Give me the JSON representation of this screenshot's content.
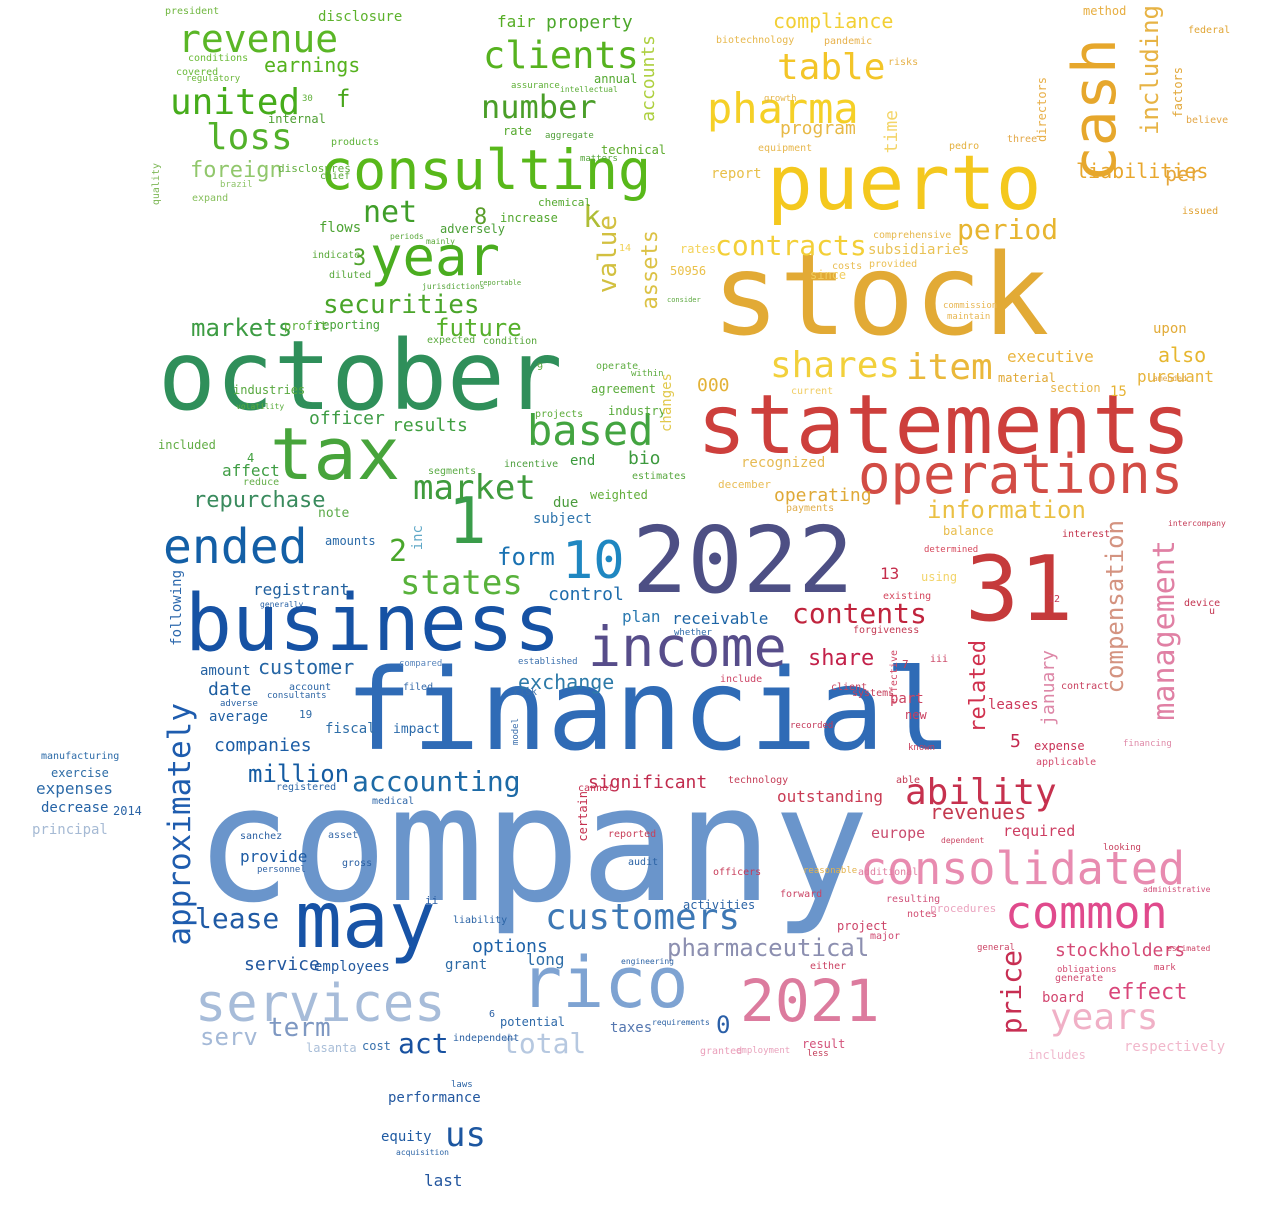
{
  "words": [
    {
      "text": "company",
      "color": "#6a95cb"
    },
    {
      "text": "financial",
      "color": "#2f6bb6"
    },
    {
      "text": "stock",
      "color": "#e2aa35"
    },
    {
      "text": "statements",
      "color": "#cd3f3c"
    },
    {
      "text": "october",
      "color": "#2f8f5a"
    },
    {
      "text": "2022",
      "color": "#4d4f84"
    },
    {
      "text": "31",
      "color": "#c53a3b"
    },
    {
      "text": "puerto",
      "color": "#f4c81e"
    },
    {
      "text": "business",
      "color": "#1652a4"
    },
    {
      "text": "income",
      "color": "#574d8a"
    },
    {
      "text": "may",
      "color": "#1753a6"
    },
    {
      "text": "rico",
      "color": "#7ea3d2"
    },
    {
      "text": "services",
      "color": "#a7bcd9"
    },
    {
      "text": "consulting",
      "color": "#58b81a"
    },
    {
      "text": "tax",
      "color": "#47a43b"
    },
    {
      "text": "operations",
      "color": "#d24c45"
    },
    {
      "text": "common",
      "color": "#e04a8c"
    },
    {
      "text": "consolidated",
      "color": "#e88bb0"
    },
    {
      "text": "2021",
      "color": "#dc7b9e"
    },
    {
      "text": "year",
      "color": "#4aad1f"
    },
    {
      "text": "cash",
      "color": "#e6a72c"
    },
    {
      "text": "ended",
      "color": "#135fa6"
    },
    {
      "text": "1",
      "color": "#3a9c4a"
    },
    {
      "text": "10",
      "color": "#1f87c1"
    },
    {
      "text": "customers",
      "color": "#3d78b5"
    },
    {
      "text": "pharma",
      "color": "#f5d027"
    },
    {
      "text": "revenue",
      "color": "#5ab626"
    },
    {
      "text": "united",
      "color": "#46ac1b"
    },
    {
      "text": "loss",
      "color": "#52b12a"
    },
    {
      "text": "clients",
      "color": "#56b21f"
    },
    {
      "text": "number",
      "color": "#4a9e28"
    },
    {
      "text": "table",
      "color": "#f3c528"
    },
    {
      "text": "based",
      "color": "#43a440"
    },
    {
      "text": "item",
      "color": "#eab83a"
    },
    {
      "text": "shares",
      "color": "#f2d03b"
    },
    {
      "text": "approximately",
      "color": "#1e5cae"
    },
    {
      "text": "ability",
      "color": "#c6314e"
    },
    {
      "text": "management",
      "color": "#e080a4"
    },
    {
      "text": "compensation",
      "color": "#d49380"
    },
    {
      "text": "years",
      "color": "#f0b0c6"
    },
    {
      "text": "price",
      "color": "#c72e52"
    },
    {
      "text": "including",
      "color": "#e7b344"
    },
    {
      "text": "market",
      "color": "#3f9b3c"
    },
    {
      "text": "states",
      "color": "#58b23b"
    },
    {
      "text": "information",
      "color": "#eac044"
    },
    {
      "text": "accounting",
      "color": "#1d6aa6"
    },
    {
      "text": "contents",
      "color": "#c0243d"
    },
    {
      "text": "net",
      "color": "#3f9e29"
    },
    {
      "text": "period",
      "color": "#e7b530"
    },
    {
      "text": "contracts",
      "color": "#f3cf38"
    },
    {
      "text": "securities",
      "color": "#4aa52a"
    },
    {
      "text": "earnings",
      "color": "#55b21e"
    },
    {
      "text": "foreign",
      "color": "#91c76c"
    },
    {
      "text": "markets",
      "color": "#3d9c43"
    },
    {
      "text": "future",
      "color": "#57b02c"
    },
    {
      "text": "assets",
      "color": "#dcc245"
    },
    {
      "text": "value",
      "color": "#d2c040"
    },
    {
      "text": "accounts",
      "color": "#aed040"
    },
    {
      "text": "compliance",
      "color": "#f2cf35"
    },
    {
      "text": "pharmaceutical",
      "color": "#8c8fb0"
    },
    {
      "text": "million",
      "color": "#145ba2"
    },
    {
      "text": "lease",
      "color": "#1f5aa5"
    },
    {
      "text": "exchange",
      "color": "#2d7aa8"
    },
    {
      "text": "revenues",
      "color": "#c43a50"
    },
    {
      "text": "effect",
      "color": "#d9467a"
    },
    {
      "text": "stockholders",
      "color": "#d54a76"
    },
    {
      "text": "related",
      "color": "#d0314e"
    },
    {
      "text": "january",
      "color": "#dd87a7"
    },
    {
      "text": "form",
      "color": "#1a72b2"
    },
    {
      "text": "repurchase",
      "color": "#3a8b5e"
    },
    {
      "text": "customer",
      "color": "#2565a4"
    },
    {
      "text": "term",
      "color": "#7e98c2"
    },
    {
      "text": "total",
      "color": "#b6c8e0"
    },
    {
      "text": "act",
      "color": "#1851a0"
    },
    {
      "text": "us",
      "color": "#1c56a0"
    },
    {
      "text": "serv",
      "color": "#a4b9d7"
    },
    {
      "text": "share",
      "color": "#c3214a"
    },
    {
      "text": "control",
      "color": "#1f6dac"
    },
    {
      "text": "significant",
      "color": "#c12c4e"
    },
    {
      "text": "outstanding",
      "color": "#c93b54"
    },
    {
      "text": "operating",
      "color": "#dfa937"
    },
    {
      "text": "also",
      "color": "#e6b62e"
    },
    {
      "text": "program",
      "color": "#e7b947"
    },
    {
      "text": "executive",
      "color": "#eab540"
    },
    {
      "text": "liabilities",
      "color": "#e8a72d"
    },
    {
      "text": "per",
      "color": "#e6a73c"
    },
    {
      "text": "time",
      "color": "#f4d569"
    },
    {
      "text": "k",
      "color": "#aebd35"
    },
    {
      "text": "f",
      "color": "#49a61c"
    },
    {
      "text": "8",
      "color": "#5a9e2a"
    },
    {
      "text": "3",
      "color": "#50a42c"
    },
    {
      "text": "2",
      "color": "#49a62a"
    },
    {
      "text": "0",
      "color": "#2a5fa8"
    },
    {
      "text": "5",
      "color": "#c4284f"
    },
    {
      "text": "13",
      "color": "#c52d4b"
    },
    {
      "text": "000",
      "color": "#e3b238"
    },
    {
      "text": "results",
      "color": "#3f9f40"
    },
    {
      "text": "officer",
      "color": "#3e9c45"
    },
    {
      "text": "bio",
      "color": "#3d9a3e"
    },
    {
      "text": "receivable",
      "color": "#1f66a6"
    },
    {
      "text": "plan",
      "color": "#2b79b0"
    },
    {
      "text": "options",
      "color": "#1d61a8"
    },
    {
      "text": "companies",
      "color": "#1c5da5"
    },
    {
      "text": "registrant",
      "color": "#22619f"
    },
    {
      "text": "date",
      "color": "#1d5ea1"
    },
    {
      "text": "expenses",
      "color": "#2c6aa8"
    },
    {
      "text": "principal",
      "color": "#a6bad4"
    },
    {
      "text": "europe",
      "color": "#c94c6e"
    },
    {
      "text": "required",
      "color": "#cd3e62"
    },
    {
      "text": "upon",
      "color": "#e2ab37"
    },
    {
      "text": "pursuant",
      "color": "#e7b43a"
    },
    {
      "text": "leases",
      "color": "#cd3a5c"
    },
    {
      "text": "expense",
      "color": "#c93458"
    },
    {
      "text": "material",
      "color": "#e0a834"
    },
    {
      "text": "subject",
      "color": "#2f75ad"
    },
    {
      "text": "affect",
      "color": "#3f9d44"
    },
    {
      "text": "weighted",
      "color": "#61ad38"
    },
    {
      "text": "provide",
      "color": "#1d5ba4"
    },
    {
      "text": "service",
      "color": "#22579e"
    },
    {
      "text": "employees",
      "color": "#23599f"
    },
    {
      "text": "grant",
      "color": "#2d6ba6"
    },
    {
      "text": "long",
      "color": "#2e6ea8"
    },
    {
      "text": "taxes",
      "color": "#5577b0"
    },
    {
      "text": "equity",
      "color": "#1f5aa2"
    },
    {
      "text": "performance",
      "color": "#2358a0"
    },
    {
      "text": "last",
      "color": "#23569e"
    },
    {
      "text": "board",
      "color": "#d2466f"
    },
    {
      "text": "respectively",
      "color": "#f1b7cb"
    },
    {
      "text": "recognized",
      "color": "#e6bb55"
    },
    {
      "text": "rates",
      "color": "#f3d35a"
    },
    {
      "text": "subsidiaries",
      "color": "#e9c256"
    },
    {
      "text": "report",
      "color": "#e8c04a"
    },
    {
      "text": "property",
      "color": "#4ca72b"
    },
    {
      "text": "fair",
      "color": "#55ad24"
    },
    {
      "text": "disclosure",
      "color": "#5db22d"
    },
    {
      "text": "annual",
      "color": "#53a830"
    },
    {
      "text": "technical",
      "color": "#5aa929"
    },
    {
      "text": "internal",
      "color": "#4e9f32"
    },
    {
      "text": "flows",
      "color": "#4ca332"
    },
    {
      "text": "adversely",
      "color": "#4a9f36"
    },
    {
      "text": "reporting",
      "color": "#48a43a"
    },
    {
      "text": "manufacturing",
      "color": "#2b6aa8"
    },
    {
      "text": "exercise",
      "color": "#2d6ca6"
    },
    {
      "text": "decrease",
      "color": "#2563a6"
    },
    {
      "text": "following",
      "color": "#2d69ad"
    },
    {
      "text": "inc",
      "color": "#60a8c7"
    },
    {
      "text": "due",
      "color": "#4a9b3c"
    },
    {
      "text": "note",
      "color": "#5caa49"
    },
    {
      "text": "amounts",
      "color": "#2a6aa8"
    },
    {
      "text": "amount",
      "color": "#2663a3"
    },
    {
      "text": "average",
      "color": "#2160a3"
    },
    {
      "text": "impact",
      "color": "#2a6aab"
    },
    {
      "text": "fiscal",
      "color": "#2e6ea8"
    },
    {
      "text": "2014",
      "color": "#2a64a6"
    },
    {
      "text": "interest",
      "color": "#c3354e"
    },
    {
      "text": "15",
      "color": "#e6b333"
    },
    {
      "text": "directors",
      "color": "#e8b04a"
    },
    {
      "text": "factors",
      "color": "#e2a83a"
    },
    {
      "text": "issued",
      "color": "#e0a233"
    },
    {
      "text": "method",
      "color": "#e7ae40"
    },
    {
      "text": "federal",
      "color": "#e0a534"
    },
    {
      "text": "section",
      "color": "#e8b74d"
    },
    {
      "text": "december",
      "color": "#e9bd56"
    },
    {
      "text": "balance",
      "color": "#e8bd4c"
    },
    {
      "text": "using",
      "color": "#f2d46a"
    },
    {
      "text": "forgiveness",
      "color": "#c43b54"
    },
    {
      "text": "part",
      "color": "#cc4462"
    },
    {
      "text": "new",
      "color": "#c93f5f"
    },
    {
      "text": "project",
      "color": "#cd4468"
    },
    {
      "text": "result",
      "color": "#d3527a"
    },
    {
      "text": "generate",
      "color": "#d04d73"
    },
    {
      "text": "potential",
      "color": "#2c68a8"
    },
    {
      "text": "cost",
      "color": "#3871ad"
    },
    {
      "text": "lasanta",
      "color": "#a9bed8"
    },
    {
      "text": "technology",
      "color": "#c53d57"
    },
    {
      "text": "pedro",
      "color": "#e4b13f"
    },
    {
      "text": "chemical",
      "color": "#55a930"
    },
    {
      "text": "increase",
      "color": "#52a72e"
    },
    {
      "text": "rate",
      "color": "#54a92c"
    },
    {
      "text": "projects",
      "color": "#5bab38"
    },
    {
      "text": "industry",
      "color": "#57aa3a"
    },
    {
      "text": "agreement",
      "color": "#5aac3b"
    },
    {
      "text": "operate",
      "color": "#5fae42"
    },
    {
      "text": "products",
      "color": "#5db238"
    },
    {
      "text": "quality",
      "color": "#7db756"
    },
    {
      "text": "industries",
      "color": "#57a83e"
    },
    {
      "text": "included",
      "color": "#62ad45"
    },
    {
      "text": "chief",
      "color": "#57a735"
    },
    {
      "text": "disclosures",
      "color": "#61ad3c"
    },
    {
      "text": "expand",
      "color": "#86bf5b"
    },
    {
      "text": "conditions",
      "color": "#6aba36"
    },
    {
      "text": "covered",
      "color": "#6ab93a"
    },
    {
      "text": "president",
      "color": "#70b740"
    },
    {
      "text": "profit",
      "color": "#58ad36"
    },
    {
      "text": "indicate",
      "color": "#5aa93a"
    },
    {
      "text": "diluted",
      "color": "#56a73a"
    },
    {
      "text": "expected",
      "color": "#59aa3c"
    },
    {
      "text": "condition",
      "color": "#56a63a"
    },
    {
      "text": "incentive",
      "color": "#4d9f3e"
    },
    {
      "text": "estimates",
      "color": "#57a73e"
    },
    {
      "text": "segments",
      "color": "#5bab45"
    },
    {
      "text": "end",
      "color": "#3a9a3c"
    },
    {
      "text": "reduce",
      "color": "#64ae48"
    },
    {
      "text": "payments",
      "color": "#e0ad4b"
    },
    {
      "text": "determined",
      "color": "#d6485c"
    },
    {
      "text": "existing",
      "color": "#d4475e"
    },
    {
      "text": "effective",
      "color": "#d24966"
    },
    {
      "text": "include",
      "color": "#cd4566"
    },
    {
      "text": "client",
      "color": "#c9435f"
    },
    {
      "text": "systems",
      "color": "#c53f5c"
    },
    {
      "text": "recorded",
      "color": "#c4395a"
    },
    {
      "text": "certain",
      "color": "#c5304f"
    },
    {
      "text": "cannot",
      "color": "#c63454"
    },
    {
      "text": "reported",
      "color": "#c8405a"
    },
    {
      "text": "officers",
      "color": "#c73b58"
    },
    {
      "text": "forward",
      "color": "#cb4566"
    },
    {
      "text": "major",
      "color": "#cf4870"
    },
    {
      "text": "notes",
      "color": "#d24f73"
    },
    {
      "text": "resulting",
      "color": "#d0527a"
    },
    {
      "text": "additional",
      "color": "#e07ea0"
    },
    {
      "text": "procedures",
      "color": "#eba4bf"
    },
    {
      "text": "includes",
      "color": "#f0b8cd"
    },
    {
      "text": "applicable",
      "color": "#d34b6e"
    },
    {
      "text": "contract",
      "color": "#c9415f"
    },
    {
      "text": "financing",
      "color": "#df8aa8"
    },
    {
      "text": "mark",
      "color": "#cf4468"
    },
    {
      "text": "obligations",
      "color": "#d34d73"
    },
    {
      "text": "either",
      "color": "#cb4363"
    },
    {
      "text": "activities",
      "color": "#2c64a6"
    },
    {
      "text": "audit",
      "color": "#2a62a4"
    },
    {
      "text": "employment",
      "color": "#e9a3bd"
    },
    {
      "text": "granted",
      "color": "#ea9fba"
    },
    {
      "text": "less",
      "color": "#c33c58"
    },
    {
      "text": "liability",
      "color": "#2a63a5"
    },
    {
      "text": "independent",
      "color": "#2c62a4"
    },
    {
      "text": "sanchez",
      "color": "#2b60a3"
    },
    {
      "text": "personnel",
      "color": "#3063a6"
    },
    {
      "text": "gross",
      "color": "#2b60a3"
    },
    {
      "text": "asset",
      "color": "#3a6caa"
    },
    {
      "text": "medical",
      "color": "#2d66a8"
    },
    {
      "text": "registered",
      "color": "#2c66a6"
    },
    {
      "text": "consultants",
      "color": "#2e66a5"
    },
    {
      "text": "adverse",
      "color": "#2a62a3"
    },
    {
      "text": "account",
      "color": "#2e67a7"
    },
    {
      "text": "filed",
      "color": "#3368a8"
    },
    {
      "text": "risk",
      "color": "#3a6fab"
    },
    {
      "text": "compared",
      "color": "#5a86bd"
    },
    {
      "text": "established",
      "color": "#3b70ad"
    },
    {
      "text": "whether",
      "color": "#2f6aa9"
    },
    {
      "text": "model",
      "color": "#3d70ac"
    },
    {
      "text": "19",
      "color": "#2f6aa6"
    },
    {
      "text": "4",
      "color": "#3f9f3c"
    },
    {
      "text": "7",
      "color": "#c53b55"
    },
    {
      "text": "6",
      "color": "#2a60a5"
    },
    {
      "text": "12",
      "color": "#c43c54"
    },
    {
      "text": "14",
      "color": "#f1d155"
    },
    {
      "text": "9",
      "color": "#5dab3e"
    },
    {
      "text": "iii",
      "color": "#c94161"
    },
    {
      "text": "ii",
      "color": "#2a5ea3"
    },
    {
      "text": "30",
      "color": "#60b03a"
    },
    {
      "text": "50956",
      "color": "#eac14b"
    },
    {
      "text": "equipment",
      "color": "#e7b74d"
    },
    {
      "text": "comprehensive",
      "color": "#e7b94e"
    },
    {
      "text": "provided",
      "color": "#ebc054"
    },
    {
      "text": "costs",
      "color": "#e9bd51"
    },
    {
      "text": "since",
      "color": "#f1cd5e"
    },
    {
      "text": "biotechnology",
      "color": "#e7b84d"
    },
    {
      "text": "pandemic",
      "color": "#e7b14b"
    },
    {
      "text": "risks",
      "color": "#e6b24a"
    },
    {
      "text": "three",
      "color": "#e3a848"
    },
    {
      "text": "believe",
      "color": "#e3a747"
    },
    {
      "text": "commission",
      "color": "#e8b754"
    },
    {
      "text": "maintain",
      "color": "#e7b753"
    },
    {
      "text": "amended",
      "color": "#dfa546"
    },
    {
      "text": "current",
      "color": "#f0cd65"
    },
    {
      "text": "laws",
      "color": "#2c64a5"
    },
    {
      "text": "acquisition",
      "color": "#2e65a6"
    },
    {
      "text": "engineering",
      "color": "#2e64a6"
    },
    {
      "text": "requirements",
      "color": "#2d63a5"
    },
    {
      "text": "looking",
      "color": "#c73f5d"
    },
    {
      "text": "administrative",
      "color": "#d0507a"
    },
    {
      "text": "dependent",
      "color": "#ca4663"
    },
    {
      "text": "able",
      "color": "#c33b54"
    },
    {
      "text": "known",
      "color": "#c73f5c"
    },
    {
      "text": "general",
      "color": "#cc4566"
    },
    {
      "text": "intercompany",
      "color": "#c53c57"
    },
    {
      "text": "estimated",
      "color": "#cd4668"
    },
    {
      "text": "device",
      "color": "#c3334f"
    },
    {
      "text": "u",
      "color": "#c43752"
    },
    {
      "text": "regulatory",
      "color": "#6cb83a"
    },
    {
      "text": "brazil",
      "color": "#8fc46a"
    },
    {
      "text": "assurance",
      "color": "#5fb037"
    },
    {
      "text": "volatility",
      "color": "#5aad3d"
    },
    {
      "text": "mainly",
      "color": "#5aa93a"
    },
    {
      "text": "periods",
      "color": "#58a73a"
    },
    {
      "text": "jurisdictions",
      "color": "#57a63c"
    },
    {
      "text": "consider",
      "color": "#5ea941"
    },
    {
      "text": "reportable",
      "color": "#5aa73c"
    },
    {
      "text": "intellectual",
      "color": "#5dae3a"
    },
    {
      "text": "aggregate",
      "color": "#4f9f37"
    },
    {
      "text": "matters",
      "color": "#55a53a"
    },
    {
      "text": "within",
      "color": "#5dab3f"
    },
    {
      "text": "growth",
      "color": "#e5b64d"
    },
    {
      "text": "reasonable",
      "color": "#e3b24c"
    },
    {
      "text": "changes",
      "color": "#e1c84b"
    },
    {
      "text": "generally",
      "color": "#2a63a6"
    }
  ]
}
